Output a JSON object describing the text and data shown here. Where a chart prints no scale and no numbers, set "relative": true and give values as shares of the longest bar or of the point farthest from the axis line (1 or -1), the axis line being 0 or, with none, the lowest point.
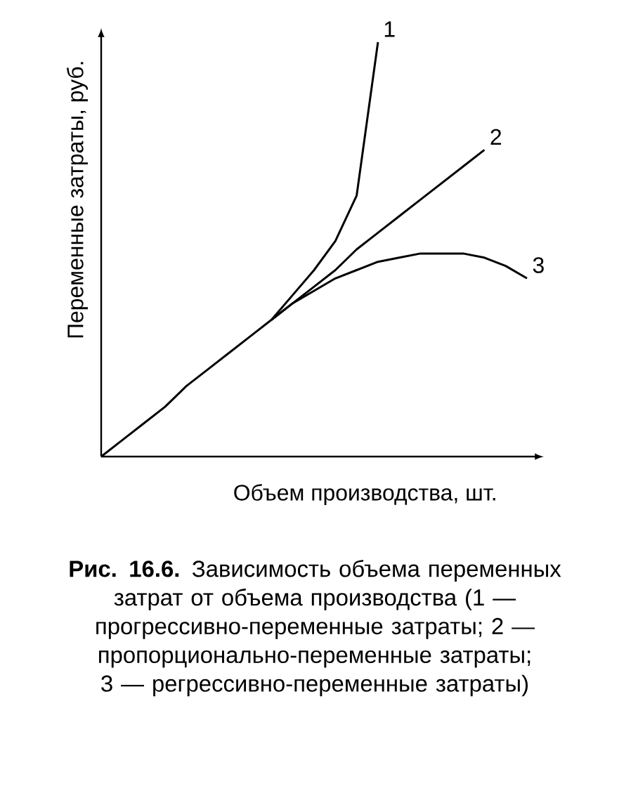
{
  "chart_data": {
    "type": "line",
    "relative": true,
    "title": "**Рис. 16.6.** Зависимость объема переменных затрат от объема производства (1 — прогрессивно-переменные затраты; 2 — пропорционально-переменные затраты; 3 — регрессивно-переменные затраты)",
    "xlabel": "Объем производства, шт.",
    "ylabel": "Переменные затраты, руб.",
    "categories": [
      null,
      null,
      null,
      null,
      null,
      null,
      null,
      null,
      null,
      null,
      null,
      null,
      null,
      null,
      null,
      null,
      null,
      null,
      null,
      null,
      null
    ],
    "series": [
      {
        "name": "1",
        "color": "#000000",
        "values": [
          null,
          null,
          null,
          null,
          null,
          null,
          null,
          null,
          0.33,
          0.39,
          0.45,
          0.52,
          0.63,
          1.0,
          null,
          null,
          null,
          null,
          null,
          null,
          null
        ]
      },
      {
        "name": "2",
        "color": "#000000",
        "values": [
          0,
          0.04,
          0.08,
          0.12,
          0.17,
          0.21,
          0.25,
          0.29,
          0.33,
          0.37,
          0.41,
          0.45,
          0.5,
          0.54,
          0.58,
          0.62,
          0.66,
          0.7,
          0.74,
          null,
          null
        ]
      },
      {
        "name": "3",
        "color": "#000000",
        "values": [
          null,
          null,
          null,
          null,
          null,
          null,
          null,
          null,
          0.33,
          0.37,
          0.4,
          0.43,
          0.45,
          0.47,
          0.48,
          0.49,
          0.49,
          0.49,
          0.48,
          0.46,
          0.43
        ]
      }
    ]
  }
}
